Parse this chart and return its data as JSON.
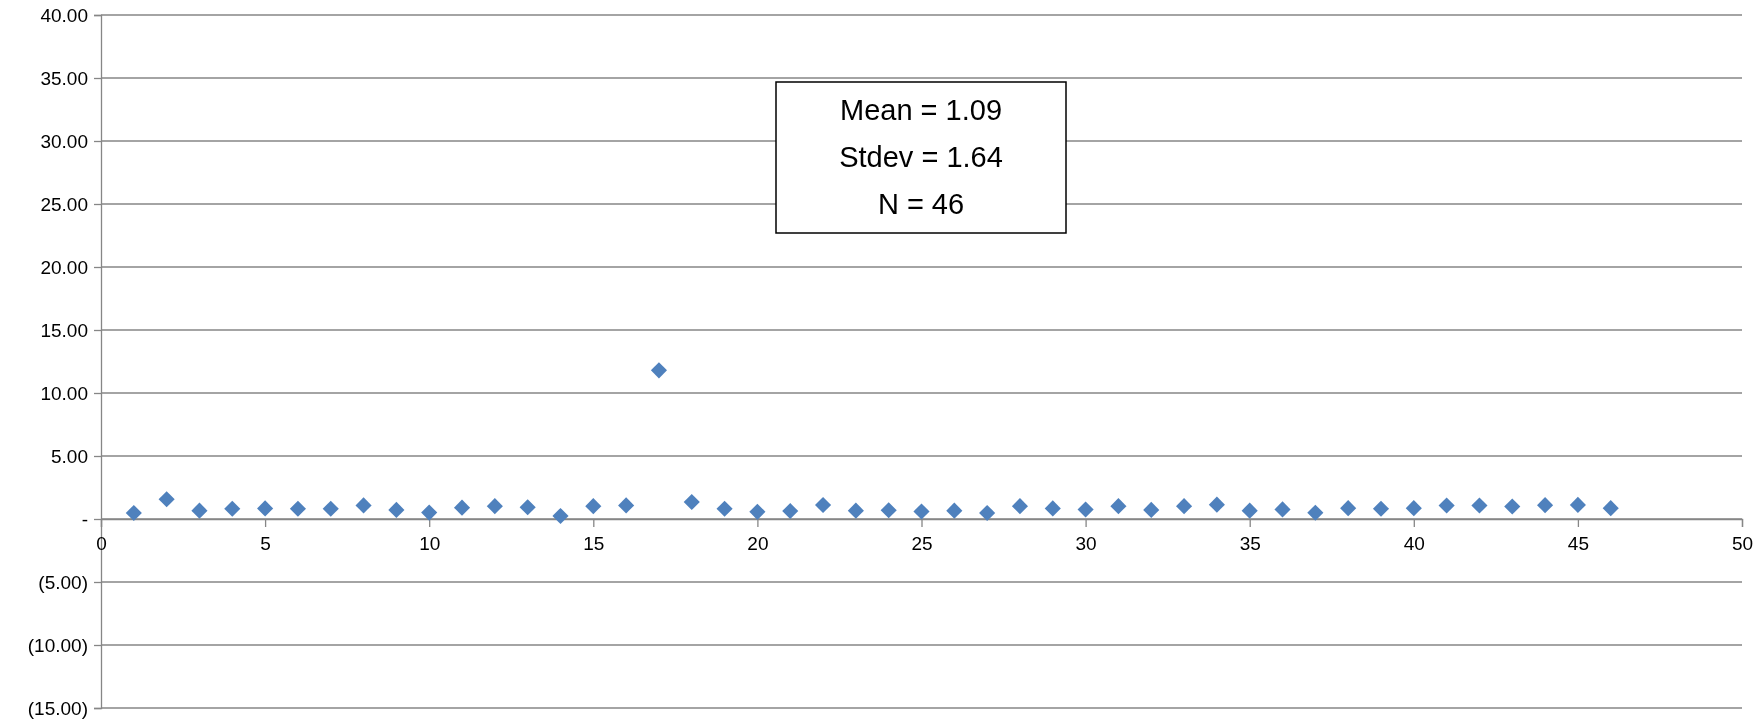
{
  "chart_data": {
    "type": "scatter",
    "marker": "diamond",
    "grid": "y",
    "x": [
      1,
      2,
      3,
      4,
      5,
      6,
      7,
      8,
      9,
      10,
      11,
      12,
      13,
      14,
      15,
      16,
      17,
      18,
      19,
      20,
      21,
      22,
      23,
      24,
      25,
      26,
      27,
      28,
      29,
      30,
      31,
      32,
      33,
      34,
      35,
      36,
      37,
      38,
      39,
      40,
      41,
      42,
      43,
      44,
      45,
      46
    ],
    "series": [
      {
        "color": "#4f81bd",
        "values": [
          0.48,
          1.57,
          0.66,
          0.81,
          0.84,
          0.81,
          0.81,
          1.08,
          0.72,
          0.51,
          0.9,
          1.02,
          0.93,
          0.24,
          1.02,
          1.08,
          11.8,
          1.35,
          0.81,
          0.57,
          0.63,
          1.11,
          0.66,
          0.69,
          0.6,
          0.66,
          0.48,
          1.02,
          0.84,
          0.75,
          1.02,
          0.72,
          1.02,
          1.14,
          0.66,
          0.76,
          0.5,
          0.86,
          0.81,
          0.86,
          1.07,
          1.07,
          0.99,
          1.1,
          1.12,
          0.86
        ]
      }
    ],
    "xlim": [
      0,
      50
    ],
    "xticks": [
      0,
      5,
      10,
      15,
      20,
      25,
      30,
      35,
      40,
      45,
      50
    ],
    "ylim": [
      -15,
      40
    ],
    "yticks": [
      {
        "value": -15,
        "label": "(15.00)"
      },
      {
        "value": -10,
        "label": "(10.00)"
      },
      {
        "value": -5,
        "label": "(5.00)"
      },
      {
        "value": 0,
        "label": "-"
      },
      {
        "value": 5,
        "label": "5.00"
      },
      {
        "value": 10,
        "label": "10.00"
      },
      {
        "value": 15,
        "label": "15.00"
      },
      {
        "value": 20,
        "label": "20.00"
      },
      {
        "value": 25,
        "label": "25.00"
      },
      {
        "value": 30,
        "label": "30.00"
      },
      {
        "value": 35,
        "label": "35.00"
      },
      {
        "value": 40,
        "label": "40.00"
      }
    ],
    "annotations": [
      "Mean = 1.09",
      "Stdev = 1.64",
      "N = 46"
    ]
  }
}
